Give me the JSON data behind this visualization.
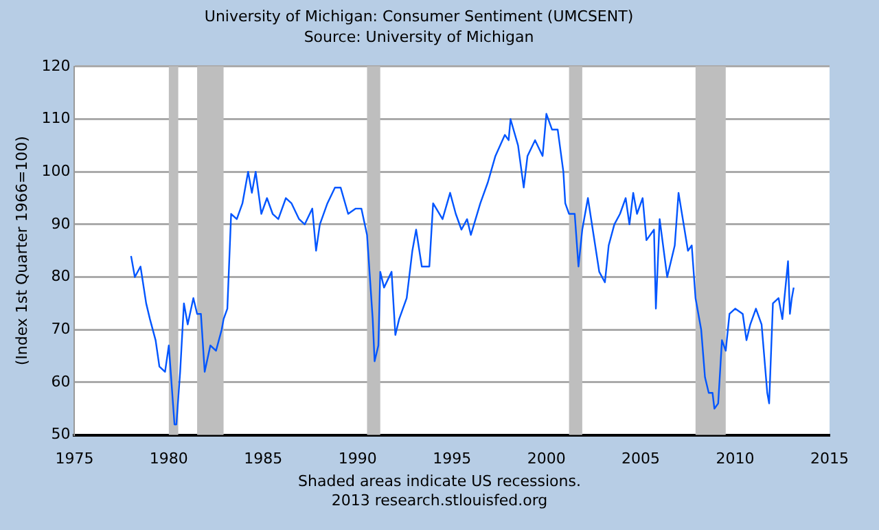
{
  "chart_data": {
    "type": "line",
    "title": "University of Michigan: Consumer Sentiment (UMCSENT)",
    "subtitle": "Source: University of Michigan",
    "ylabel": "(Index 1st Quarter 1966=100)",
    "annotations": [
      "Shaded areas indicate US recessions.",
      "2013 research.stlouisfed.org"
    ],
    "xlim": [
      1975,
      2015
    ],
    "xticks": [
      1975,
      1980,
      1985,
      1990,
      1995,
      2000,
      2005,
      2010,
      2015
    ],
    "ylim": [
      50,
      120
    ],
    "yticks": [
      50,
      60,
      70,
      80,
      90,
      100,
      110,
      120
    ],
    "grid": "y",
    "legend": false,
    "marker": "none",
    "line_style": "solid",
    "bands": [
      {
        "axis": "x",
        "from": 1980.0,
        "to": 1980.5,
        "color": "#bebebe"
      },
      {
        "axis": "x",
        "from": 1981.5,
        "to": 1982.9,
        "color": "#bebebe"
      },
      {
        "axis": "x",
        "from": 1990.5,
        "to": 1991.2,
        "color": "#bebebe"
      },
      {
        "axis": "x",
        "from": 2001.2,
        "to": 2001.9,
        "color": "#bebebe"
      },
      {
        "axis": "x",
        "from": 2007.9,
        "to": 2009.5,
        "color": "#bebebe"
      }
    ],
    "series": [
      {
        "color": "#0055ff",
        "x": [
          1978.0,
          1978.2,
          1978.5,
          1978.8,
          1979.0,
          1979.3,
          1979.5,
          1979.8,
          1980.0,
          1980.3,
          1980.4,
          1980.6,
          1980.8,
          1981.0,
          1981.3,
          1981.5,
          1981.7,
          1981.9,
          1982.2,
          1982.5,
          1982.8,
          1982.9,
          1983.1,
          1983.3,
          1983.6,
          1983.9,
          1984.2,
          1984.4,
          1984.6,
          1984.9,
          1985.2,
          1985.5,
          1985.8,
          1986.2,
          1986.5,
          1986.9,
          1987.2,
          1987.6,
          1987.8,
          1988.0,
          1988.4,
          1988.8,
          1989.1,
          1989.5,
          1989.9,
          1990.2,
          1990.5,
          1990.8,
          1990.9,
          1991.1,
          1991.2,
          1991.4,
          1991.8,
          1992.0,
          1992.2,
          1992.6,
          1992.9,
          1993.1,
          1993.4,
          1993.8,
          1994.0,
          1994.5,
          1994.9,
          1995.2,
          1995.5,
          1995.8,
          1996.0,
          1996.5,
          1996.9,
          1997.3,
          1997.8,
          1998.0,
          1998.1,
          1998.5,
          1998.8,
          1999.0,
          1999.4,
          1999.8,
          2000.0,
          2000.3,
          2000.6,
          2000.9,
          2001.0,
          2001.2,
          2001.5,
          2001.7,
          2001.9,
          2002.2,
          2002.5,
          2002.8,
          2003.1,
          2003.3,
          2003.6,
          2003.9,
          2004.2,
          2004.4,
          2004.6,
          2004.8,
          2005.1,
          2005.3,
          2005.7,
          2005.8,
          2006.0,
          2006.4,
          2006.8,
          2007.0,
          2007.5,
          2007.7,
          2007.9,
          2008.2,
          2008.4,
          2008.6,
          2008.8,
          2008.9,
          2009.1,
          2009.3,
          2009.5,
          2009.7,
          2010.0,
          2010.4,
          2010.6,
          2010.8,
          2011.1,
          2011.4,
          2011.7,
          2011.8,
          2012.0,
          2012.3,
          2012.5,
          2012.8,
          2012.9,
          2013.0,
          2013.1
        ],
        "values": [
          84,
          80,
          82,
          75,
          72,
          68,
          63,
          62,
          67,
          52,
          52,
          62,
          75,
          71,
          76,
          73,
          73,
          62,
          67,
          66,
          70,
          72,
          74,
          92,
          91,
          94,
          100,
          96,
          100,
          92,
          95,
          92,
          91,
          95,
          94,
          91,
          90,
          93,
          85,
          90,
          94,
          97,
          97,
          92,
          93,
          93,
          88,
          72,
          64,
          67,
          81,
          78,
          81,
          69,
          72,
          76,
          85,
          89,
          82,
          82,
          94,
          91,
          96,
          92,
          89,
          91,
          88,
          94,
          98,
          103,
          107,
          106,
          110,
          105,
          97,
          103,
          106,
          103,
          111,
          108,
          108,
          100,
          94,
          92,
          92,
          82,
          89,
          95,
          88,
          81,
          79,
          86,
          90,
          92,
          95,
          90,
          96,
          92,
          95,
          87,
          89,
          74,
          91,
          80,
          86,
          96,
          85,
          86,
          76,
          70,
          61,
          58,
          58,
          55,
          56,
          68,
          66,
          73,
          74,
          73,
          68,
          71,
          74,
          71,
          58,
          56,
          75,
          76,
          72,
          83,
          73,
          76,
          78
        ]
      }
    ]
  }
}
